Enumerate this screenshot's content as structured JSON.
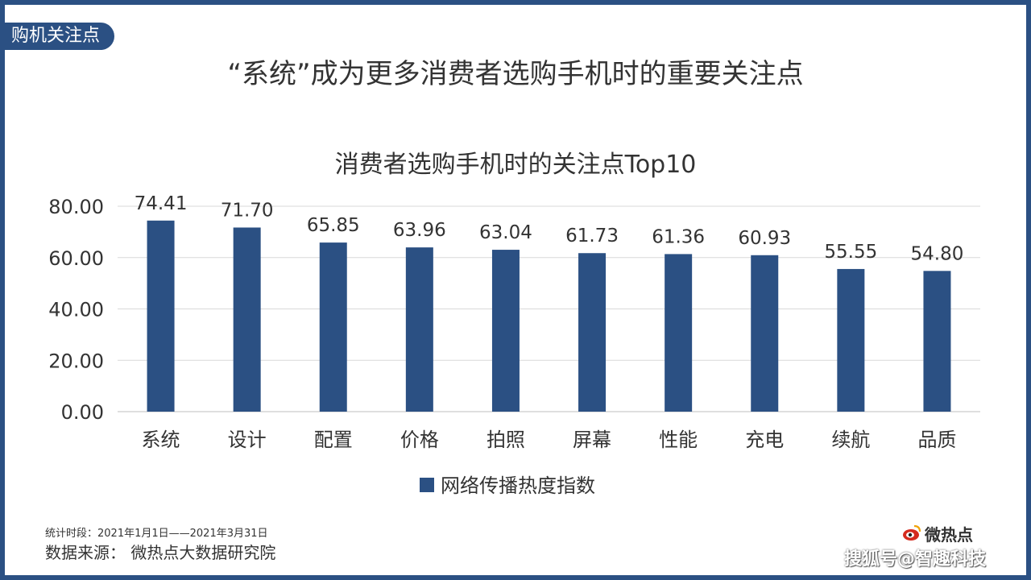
{
  "header": {
    "section_tab": "购机关注点",
    "title": "“系统”成为更多消费者选购手机时的重要关注点"
  },
  "chart_data": {
    "type": "bar",
    "title": "消费者选购手机时的关注点Top10",
    "categories": [
      "系统",
      "设计",
      "配置",
      "价格",
      "拍照",
      "屏幕",
      "性能",
      "充电",
      "续航",
      "品质"
    ],
    "series": [
      {
        "name": "网络传播热度指数",
        "values": [
          74.41,
          71.7,
          65.85,
          63.96,
          63.04,
          61.73,
          61.36,
          60.93,
          55.55,
          54.8
        ],
        "labels": [
          "74.41",
          "71.70",
          "65.85",
          "63.96",
          "63.04",
          "61.73",
          "61.36",
          "60.93",
          "55.55",
          "54.80"
        ],
        "color": "#2b5083"
      }
    ],
    "yticks": [
      "0.00",
      "20.00",
      "40.00",
      "60.00",
      "80.00"
    ],
    "ylim": [
      0,
      80
    ],
    "xlabel": "",
    "ylabel": "",
    "grid": true,
    "legend_position": "bottom"
  },
  "footer": {
    "period": "统计时段：2021年1月1日——2021年3月31日",
    "source": "数据来源：  微热点大数据研究院",
    "brand": "微热点",
    "watermark": "搜狐号@智趣科技"
  },
  "colors": {
    "accent": "#2b5083",
    "grid": "#d9d9d9",
    "text": "#333333"
  },
  "icons": {
    "brand_logo": "weibo-eye-icon"
  }
}
